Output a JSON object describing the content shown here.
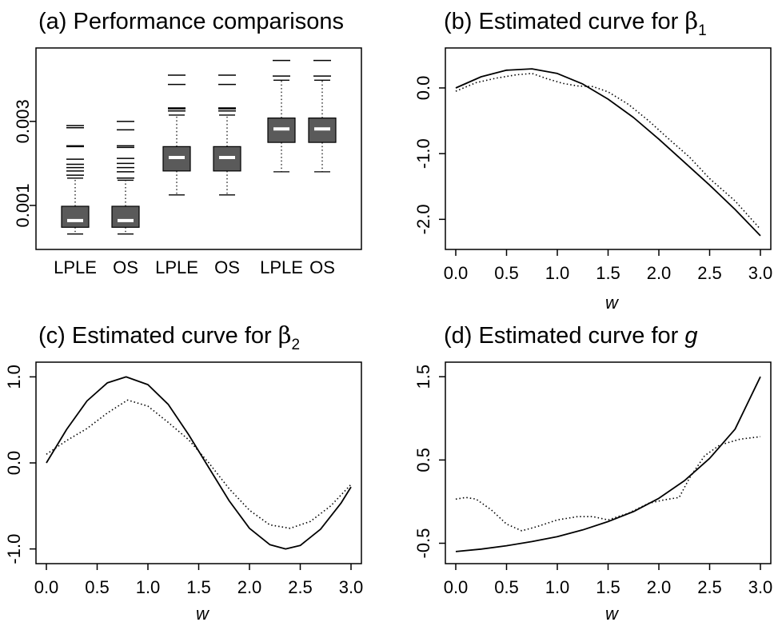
{
  "panels": [
    {
      "id": "a",
      "title": "(a) Performance comparisons",
      "type": "box",
      "chart_data": {
        "type": "box",
        "categories": [
          "LPLE",
          "OS",
          "LPLE",
          "OS",
          "LPLE",
          "OS"
        ],
        "ylim": [
          0.0002,
          0.0045
        ],
        "yticks": [
          0.001,
          0.003
        ],
        "ytick_labels": [
          "0.001",
          "0.003"
        ],
        "boxes": [
          {
            "whisker_low": 0.00032,
            "q1": 0.00048,
            "median": 0.00064,
            "q3": 0.00098,
            "whisker_high": 0.00165,
            "outliers": [
              0.00172,
              0.00182,
              0.0019,
              0.00198,
              0.0021,
              0.0024,
              0.00242,
              0.00285,
              0.0029
            ]
          },
          {
            "whisker_low": 0.00032,
            "q1": 0.00048,
            "median": 0.00064,
            "q3": 0.00098,
            "whisker_high": 0.0016,
            "outliers": [
              0.00165,
              0.0018,
              0.0019,
              0.002,
              0.00212,
              0.00238,
              0.00242,
              0.0028,
              0.003
            ]
          },
          {
            "whisker_low": 0.00125,
            "q1": 0.00182,
            "median": 0.00214,
            "q3": 0.0024,
            "whisker_high": 0.00315,
            "outliers": [
              0.00325,
              0.0033,
              0.00332,
              0.00388,
              0.0041
            ]
          },
          {
            "whisker_low": 0.00125,
            "q1": 0.00182,
            "median": 0.00214,
            "q3": 0.0024,
            "whisker_high": 0.00315,
            "outliers": [
              0.00325,
              0.0033,
              0.00332,
              0.00388,
              0.0041
            ]
          },
          {
            "whisker_low": 0.0018,
            "q1": 0.0025,
            "median": 0.00282,
            "q3": 0.00308,
            "whisker_high": 0.00398,
            "outliers": [
              0.00408,
              0.00445
            ]
          },
          {
            "whisker_low": 0.0018,
            "q1": 0.0025,
            "median": 0.00282,
            "q3": 0.00308,
            "whisker_high": 0.00398,
            "outliers": [
              0.00408,
              0.00445
            ]
          }
        ]
      }
    },
    {
      "id": "b",
      "title_text": "(b) Estimated curve  for  ",
      "title_symbol": "β",
      "title_sub": "1",
      "xlabel": "w",
      "chart_data": {
        "type": "line",
        "xlim": [
          0,
          3
        ],
        "ylim": [
          -2.3,
          0.45
        ],
        "xticks": [
          0.0,
          0.5,
          1.0,
          1.5,
          2.0,
          2.5,
          3.0
        ],
        "xtick_labels": [
          "0.0",
          "0.5",
          "1.0",
          "1.5",
          "2.0",
          "2.5",
          "3.0"
        ],
        "yticks": [
          0.0,
          -1.0,
          -2.0
        ],
        "ytick_labels": [
          "0.0",
          "-1.0",
          "-2.0"
        ],
        "series": [
          {
            "style": "solid",
            "x": [
              0.0,
              0.25,
              0.5,
              0.75,
              1.0,
              1.25,
              1.5,
              1.75,
              2.0,
              2.25,
              2.5,
              2.75,
              3.0
            ],
            "y": [
              0.0,
              0.17,
              0.27,
              0.29,
              0.22,
              0.06,
              -0.17,
              -0.45,
              -0.78,
              -1.13,
              -1.48,
              -1.85,
              -2.25
            ]
          },
          {
            "style": "dotted",
            "x": [
              0.0,
              0.2,
              0.4,
              0.6,
              0.75,
              0.9,
              1.05,
              1.2,
              1.35,
              1.5,
              1.7,
              1.9,
              2.1,
              2.3,
              2.5,
              2.75,
              3.0
            ],
            "y": [
              -0.05,
              0.08,
              0.15,
              0.2,
              0.22,
              0.14,
              0.07,
              0.03,
              0.02,
              -0.06,
              -0.25,
              -0.5,
              -0.78,
              -1.05,
              -1.38,
              -1.72,
              -2.15
            ]
          }
        ]
      }
    },
    {
      "id": "c",
      "title_text": "(c) Estimated curve  for  ",
      "title_symbol": "β",
      "title_sub": "2",
      "xlabel": "w",
      "chart_data": {
        "type": "line",
        "xlim": [
          0,
          3
        ],
        "ylim": [
          -1.05,
          1.05
        ],
        "xticks": [
          0.0,
          0.5,
          1.0,
          1.5,
          2.0,
          2.5,
          3.0
        ],
        "xtick_labels": [
          "0.0",
          "0.5",
          "1.0",
          "1.5",
          "2.0",
          "2.5",
          "3.0"
        ],
        "yticks": [
          1.0,
          0.0,
          -1.0
        ],
        "ytick_labels": [
          "1.0",
          "0.0",
          "-1.0"
        ],
        "series": [
          {
            "style": "solid",
            "x": [
              0.0,
              0.2,
              0.4,
              0.6,
              0.785,
              1.0,
              1.2,
              1.4,
              1.571,
              1.8,
              2.0,
              2.2,
              2.356,
              2.5,
              2.7,
              2.9,
              3.0
            ],
            "y": [
              0.0,
              0.39,
              0.72,
              0.93,
              1.0,
              0.91,
              0.68,
              0.33,
              0.0,
              -0.44,
              -0.76,
              -0.95,
              -1.0,
              -0.96,
              -0.77,
              -0.47,
              -0.28
            ]
          },
          {
            "style": "dotted",
            "x": [
              0.0,
              0.2,
              0.4,
              0.6,
              0.8,
              1.0,
              1.2,
              1.4,
              1.6,
              1.8,
              2.0,
              2.2,
              2.4,
              2.6,
              2.8,
              3.0
            ],
            "y": [
              0.1,
              0.26,
              0.4,
              0.58,
              0.73,
              0.66,
              0.47,
              0.27,
              0.0,
              -0.3,
              -0.55,
              -0.72,
              -0.76,
              -0.68,
              -0.5,
              -0.25
            ]
          }
        ]
      }
    },
    {
      "id": "d",
      "title_text": "(d) Estimated curve for ",
      "title_italic": "g",
      "xlabel": "w",
      "chart_data": {
        "type": "line",
        "xlim": [
          0,
          3
        ],
        "ylim": [
          -0.62,
          1.55
        ],
        "xticks": [
          0.0,
          0.5,
          1.0,
          1.5,
          2.0,
          2.5,
          3.0
        ],
        "xtick_labels": [
          "0.0",
          "0.5",
          "1.0",
          "1.5",
          "2.0",
          "2.5",
          "3.0"
        ],
        "yticks": [
          1.5,
          0.5,
          -0.5
        ],
        "ytick_labels": [
          "1.5",
          "0.5",
          "-0.5"
        ],
        "series": [
          {
            "style": "solid",
            "x": [
              0.0,
              0.25,
              0.5,
              0.75,
              1.0,
              1.25,
              1.5,
              1.75,
              2.0,
              2.25,
              2.5,
              2.75,
              3.0
            ],
            "y": [
              -0.6,
              -0.57,
              -0.53,
              -0.48,
              -0.42,
              -0.34,
              -0.24,
              -0.12,
              0.04,
              0.25,
              0.52,
              0.87,
              1.5
            ]
          },
          {
            "style": "dotted",
            "x": [
              0.0,
              0.1,
              0.2,
              0.35,
              0.5,
              0.65,
              0.8,
              1.0,
              1.2,
              1.35,
              1.5,
              1.7,
              1.9,
              2.05,
              2.2,
              2.3,
              2.45,
              2.6,
              2.8,
              3.0
            ],
            "y": [
              0.03,
              0.05,
              0.03,
              -0.1,
              -0.27,
              -0.35,
              -0.3,
              -0.22,
              -0.18,
              -0.18,
              -0.22,
              -0.14,
              -0.02,
              0.02,
              0.05,
              0.28,
              0.55,
              0.68,
              0.75,
              0.78
            ]
          }
        ]
      }
    }
  ]
}
